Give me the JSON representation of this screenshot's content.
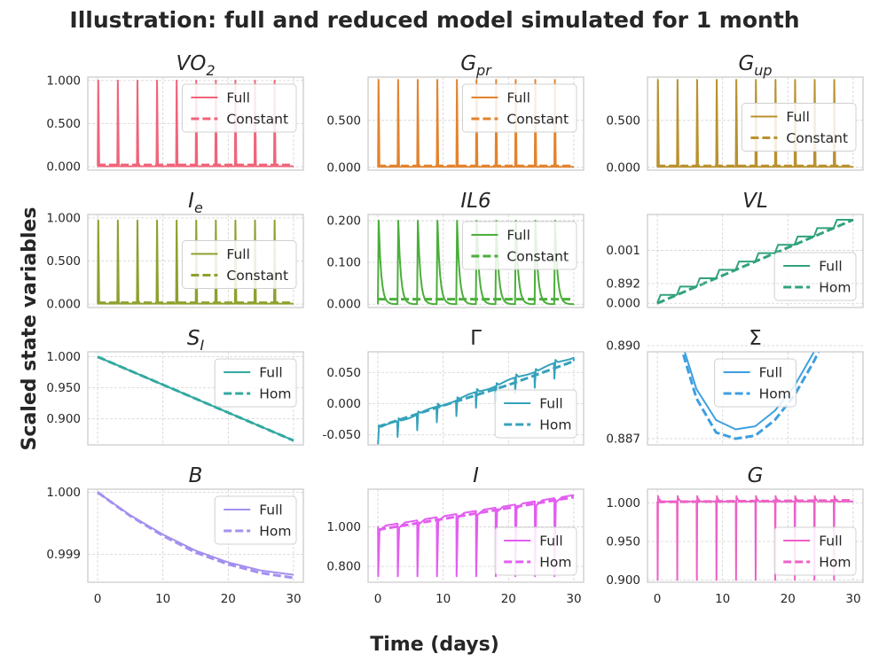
{
  "figure": {
    "title": "Illustration: full and reduced model simulated for 1 month",
    "xlabel": "Time (days)",
    "ylabel": "Scaled state variables"
  },
  "chart_data": [
    {
      "id": "vo2",
      "type": "line",
      "title": "VO₂",
      "title_base": "VO",
      "title_sub": "2",
      "color": "#f0647a",
      "xlim": [
        -1.5,
        31.5
      ],
      "ylim": [
        -0.04,
        1.04
      ],
      "xticks": [
        0,
        10,
        20,
        30
      ],
      "yticks": [
        0,
        0.5,
        1
      ],
      "ytick_labels": [
        "0.000",
        "0.500",
        "1.000"
      ],
      "legend": "upper-right",
      "series": [
        {
          "name": "Full",
          "style": "solid",
          "pattern": "spikes",
          "base": 0.005,
          "peak": 1.0,
          "period": 3
        },
        {
          "name": "Constant",
          "style": "dashed",
          "values_x": [
            0,
            30
          ],
          "values_y": [
            0.02,
            0.02
          ]
        }
      ]
    },
    {
      "id": "gpr",
      "type": "line",
      "title": "G_pr",
      "title_base": "G",
      "title_sub": "pr",
      "color": "#e3832e",
      "xlim": [
        -1.5,
        31.5
      ],
      "ylim": [
        -0.03,
        0.96
      ],
      "xticks": [
        0,
        10,
        20,
        30
      ],
      "yticks": [
        0,
        0.5
      ],
      "ytick_labels": [
        "0.000",
        "0.500"
      ],
      "legend": "upper-right",
      "series": [
        {
          "name": "Full",
          "style": "solid",
          "pattern": "spikes",
          "base": 0.005,
          "peak": 0.93,
          "period": 3
        },
        {
          "name": "Constant",
          "style": "dashed",
          "values_x": [
            0,
            30
          ],
          "values_y": [
            0.015,
            0.015
          ]
        }
      ]
    },
    {
      "id": "gup",
      "type": "line",
      "title": "G_up",
      "title_base": "G",
      "title_sub": "up",
      "color": "#b9922e",
      "xlim": [
        -1.5,
        31.5
      ],
      "ylim": [
        -0.03,
        0.96
      ],
      "xticks": [
        0,
        10,
        20,
        30
      ],
      "yticks": [
        0,
        0.5
      ],
      "ytick_labels": [
        "0.000",
        "0.500"
      ],
      "legend": "center-right",
      "series": [
        {
          "name": "Full",
          "style": "solid",
          "pattern": "spikes",
          "base": 0.005,
          "peak": 0.93,
          "period": 3
        },
        {
          "name": "Constant",
          "style": "dashed",
          "values_x": [
            0,
            30
          ],
          "values_y": [
            0.015,
            0.015
          ]
        }
      ]
    },
    {
      "id": "ie",
      "type": "line",
      "title": "I_e",
      "title_base": "I",
      "title_sub": "e",
      "color": "#8ea12e",
      "xlim": [
        -1.5,
        31.5
      ],
      "ylim": [
        -0.04,
        1.04
      ],
      "xticks": [
        0,
        10,
        20,
        30
      ],
      "yticks": [
        0,
        0.5,
        1
      ],
      "ytick_labels": [
        "0.000",
        "0.500",
        "1.000"
      ],
      "legend": "center-right",
      "series": [
        {
          "name": "Full",
          "style": "solid",
          "pattern": "spikes",
          "base": 0.005,
          "peak": 0.97,
          "period": 3
        },
        {
          "name": "Constant",
          "style": "dashed",
          "values_x": [
            0,
            30
          ],
          "values_y": [
            0.015,
            0.015
          ]
        }
      ]
    },
    {
      "id": "il6",
      "type": "line",
      "title": "IL6",
      "title_base": "IL6",
      "title_sub": "",
      "color": "#4bae3a",
      "xlim": [
        -1.5,
        31.5
      ],
      "ylim": [
        -0.008,
        0.215
      ],
      "xticks": [
        0,
        10,
        20,
        30
      ],
      "yticks": [
        0,
        0.1,
        0.2
      ],
      "ytick_labels": [
        "0.000",
        "0.100",
        "0.200"
      ],
      "legend": "upper-right",
      "series": [
        {
          "name": "Full",
          "style": "solid",
          "pattern": "decay",
          "base": 0.0,
          "peak": 0.2,
          "period": 3
        },
        {
          "name": "Constant",
          "style": "dashed",
          "values_x": [
            0,
            30
          ],
          "values_y": [
            0.012,
            0.012
          ]
        }
      ]
    },
    {
      "id": "vl",
      "type": "line",
      "title": "VL",
      "title_base": "VL",
      "title_sub": "",
      "color": "#30a27c",
      "xlim": [
        -1.5,
        31.5
      ],
      "ylim": [
        -8e-05,
        0.00168
      ],
      "xticks": [
        0,
        10,
        20,
        30
      ],
      "yticks": [
        0,
        0.001
      ],
      "ytick_labels": [
        "0.000",
        "0.001"
      ],
      "legend": "lower-right",
      "series": [
        {
          "name": "Full",
          "style": "solid",
          "pattern": "stairs",
          "start": 0.0,
          "end": 0.00158,
          "period": 3
        },
        {
          "name": "Hom",
          "style": "dashed",
          "values_x": [
            0,
            30
          ],
          "values_y": [
            0.0,
            0.00158
          ]
        }
      ]
    },
    {
      "id": "si",
      "type": "line",
      "title": "S_I",
      "title_base": "S",
      "title_sub": "I",
      "color": "#32a8a0",
      "xlim": [
        -1.5,
        31.5
      ],
      "ylim": [
        0.858,
        1.008
      ],
      "xticks": [
        0,
        10,
        20,
        30
      ],
      "yticks": [
        0.9,
        0.95,
        1.0
      ],
      "ytick_labels": [
        "0.900",
        "0.950",
        "1.000"
      ],
      "legend": "upper-right",
      "series": [
        {
          "name": "Full",
          "style": "solid",
          "values_x": [
            0,
            30
          ],
          "values_y": [
            1.0,
            0.865
          ]
        },
        {
          "name": "Hom",
          "style": "dashed",
          "values_x": [
            0,
            30
          ],
          "values_y": [
            1.0,
            0.865
          ]
        }
      ]
    },
    {
      "id": "gamma",
      "type": "line",
      "title": "Γ",
      "title_base": "Γ",
      "title_sub": "",
      "color": "#35a2bb",
      "xlim": [
        -1.5,
        31.5
      ],
      "ylim": [
        -0.066,
        0.083
      ],
      "xticks": [
        0,
        10,
        20,
        30
      ],
      "yticks": [
        -0.05,
        0,
        0.05
      ],
      "ytick_labels": [
        "-0.050",
        "0.000",
        "0.050"
      ],
      "legend": "lower-right",
      "series": [
        {
          "name": "Full",
          "style": "solid",
          "pattern": "sawtooth",
          "start": -0.04,
          "end": 0.075,
          "dip": 0.025,
          "period": 3
        },
        {
          "name": "Hom",
          "style": "dashed",
          "values_x": [
            0,
            10,
            20,
            30
          ],
          "values_y": [
            -0.037,
            -0.003,
            0.03,
            0.068
          ]
        }
      ]
    },
    {
      "id": "sigma",
      "type": "line",
      "title": "Σ",
      "title_base": "Σ",
      "title_sub": "",
      "color": "#3d9fe0",
      "xlim": [
        -1.5,
        31.5
      ],
      "ylim": [
        0.8868,
        0.8898
      ],
      "xticks": [
        0,
        10,
        20,
        30
      ],
      "yticks": [
        0.887,
        0.89,
        0.892
      ],
      "ytick_labels": [
        "0.887",
        "0.890",
        "0.892"
      ],
      "legend": "upper-center",
      "series": [
        {
          "name": "Full",
          "style": "solid",
          "values_x": [
            0,
            3,
            6,
            9,
            12,
            15,
            18,
            21,
            24,
            27,
            30
          ],
          "values_y": [
            0.8937,
            0.8906,
            0.8886,
            0.8876,
            0.8873,
            0.8874,
            0.8879,
            0.8887,
            0.8898,
            0.8911,
            0.8927
          ]
        },
        {
          "name": "Hom",
          "style": "dashed",
          "values_x": [
            0,
            3,
            6,
            9,
            12,
            15,
            18,
            21,
            24,
            27,
            30
          ],
          "values_y": [
            0.8937,
            0.8904,
            0.8883,
            0.8872,
            0.887,
            0.8871,
            0.8876,
            0.8884,
            0.8895,
            0.8908,
            0.8923
          ]
        }
      ]
    },
    {
      "id": "b",
      "type": "line",
      "title": "B",
      "title_base": "B",
      "title_sub": "",
      "color": "#a48ff0",
      "xlim": [
        -1.5,
        31.5
      ],
      "ylim": [
        0.99855,
        1.00005
      ],
      "xticks": [
        0,
        10,
        20,
        30
      ],
      "yticks": [
        0.999,
        1.0
      ],
      "ytick_labels": [
        "0.999",
        "1.000"
      ],
      "legend": "upper-right",
      "series": [
        {
          "name": "Full",
          "style": "solid",
          "values_x": [
            0,
            5,
            10,
            15,
            20,
            25,
            30
          ],
          "values_y": [
            1.0,
            0.99963,
            0.99932,
            0.99906,
            0.99887,
            0.99874,
            0.99867
          ]
        },
        {
          "name": "Hom",
          "style": "dashed",
          "values_x": [
            0,
            5,
            10,
            15,
            20,
            25,
            30
          ],
          "values_y": [
            1.0,
            0.99962,
            0.9993,
            0.99903,
            0.99884,
            0.9987,
            0.99862
          ]
        }
      ]
    },
    {
      "id": "i",
      "type": "line",
      "title": "I",
      "title_base": "I",
      "title_sub": "",
      "color": "#e25ef0",
      "xlim": [
        -1.5,
        31.5
      ],
      "ylim": [
        0.72,
        1.19
      ],
      "xticks": [
        0,
        10,
        20,
        30
      ],
      "yticks": [
        0.8,
        1.0
      ],
      "ytick_labels": [
        "0.800",
        "1.000"
      ],
      "legend": "lower-right",
      "series": [
        {
          "name": "Full",
          "style": "solid",
          "pattern": "dips",
          "start": 1.0,
          "end": 1.16,
          "low": 0.75,
          "period": 3
        },
        {
          "name": "Hom",
          "style": "dashed",
          "values_x": [
            0,
            30
          ],
          "values_y": [
            0.985,
            1.15
          ]
        }
      ]
    },
    {
      "id": "g",
      "type": "line",
      "title": "G",
      "title_base": "G",
      "title_sub": "",
      "color": "#ee60c6",
      "xlim": [
        -1.5,
        31.5
      ],
      "ylim": [
        0.897,
        1.018
      ],
      "xticks": [
        0,
        10,
        20,
        30
      ],
      "yticks": [
        0.9,
        0.95,
        1.0
      ],
      "ytick_labels": [
        "0.900",
        "0.950",
        "1.000"
      ],
      "legend": "lower-right",
      "series": [
        {
          "name": "Full",
          "style": "solid",
          "pattern": "gspikes",
          "base": 1.002,
          "low": 0.9,
          "high": 1.009,
          "period": 3
        },
        {
          "name": "Hom",
          "style": "dashed",
          "values_x": [
            0,
            30
          ],
          "values_y": [
            1.0015,
            1.0035
          ]
        }
      ]
    }
  ]
}
